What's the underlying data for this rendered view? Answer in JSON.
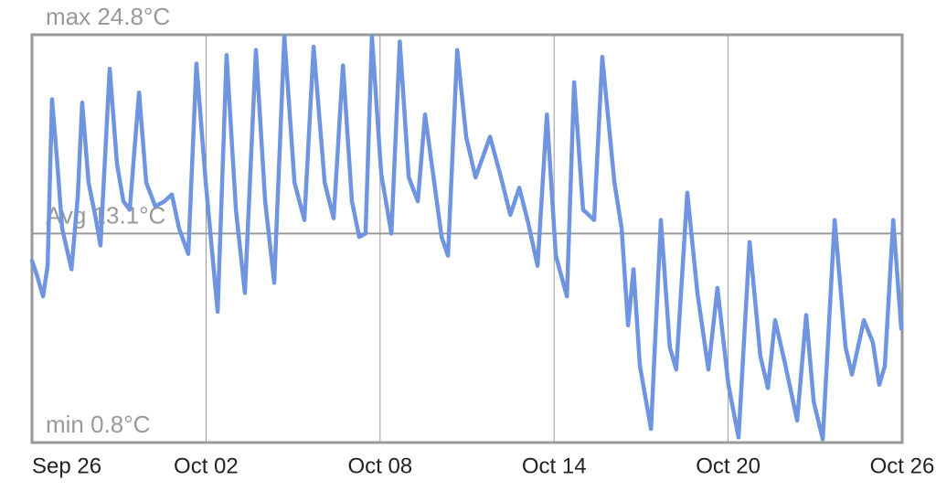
{
  "chart_data": {
    "type": "line",
    "xlim": [
      0,
      30
    ],
    "xticks": [
      {
        "value": 0,
        "label": "Sep 26"
      },
      {
        "value": 6,
        "label": "Oct 02"
      },
      {
        "value": 12,
        "label": "Oct 08"
      },
      {
        "value": 18,
        "label": "Oct 14"
      },
      {
        "value": 24,
        "label": "Oct 20"
      },
      {
        "value": 30,
        "label": "Oct 26"
      }
    ],
    "ylim": [
      0.8,
      24.8
    ],
    "reference_lines": [
      {
        "value": 24.8,
        "label": "max 24.8°C"
      },
      {
        "value": 13.1,
        "label": "Avg 13.1°C"
      },
      {
        "value": 0.8,
        "label": "min 0.8°C"
      }
    ],
    "grid": true,
    "series": [
      {
        "color": "#6f95e0",
        "x": [
          0,
          0.16,
          0.38,
          0.54,
          0.69,
          0.85,
          1.04,
          1.36,
          1.58,
          1.73,
          1.95,
          2.21,
          2.36,
          2.68,
          2.93,
          3.15,
          3.37,
          3.69,
          3.94,
          4.25,
          4.57,
          4.82,
          5.07,
          5.39,
          5.67,
          5.99,
          6.4,
          6.71,
          7.03,
          7.34,
          7.72,
          8.04,
          8.35,
          8.7,
          9.05,
          9.39,
          9.71,
          10.09,
          10.4,
          10.72,
          11.03,
          11.28,
          11.5,
          11.72,
          12.04,
          12.39,
          12.68,
          12.99,
          13.3,
          13.55,
          13.87,
          14.12,
          14.34,
          14.66,
          14.97,
          15.29,
          15.79,
          16.17,
          16.49,
          16.8,
          17.11,
          17.43,
          17.75,
          18.06,
          18.44,
          18.69,
          19.0,
          19.38,
          19.66,
          20.08,
          20.33,
          20.55,
          20.74,
          20.96,
          21.34,
          21.68,
          21.99,
          22.21,
          22.59,
          22.94,
          23.32,
          23.63,
          24.01,
          24.36,
          24.74,
          25.11,
          25.37,
          25.62,
          25.94,
          26.38,
          26.69,
          26.95,
          27.26,
          27.67,
          28.05,
          28.27,
          28.68,
          28.99,
          29.21,
          29.4,
          29.69,
          29.97
        ],
        "values": [
          11.5,
          10.7,
          9.4,
          11.2,
          21.0,
          17.7,
          13.4,
          11.0,
          15.3,
          20.8,
          16.1,
          13.9,
          12.4,
          22.8,
          17.2,
          15.0,
          14.5,
          21.4,
          16.1,
          14.7,
          15.0,
          15.4,
          13.4,
          11.9,
          23.1,
          16.1,
          8.5,
          23.6,
          14.5,
          9.6,
          23.9,
          15.0,
          10.2,
          24.7,
          16.1,
          13.9,
          24.1,
          16.1,
          14.0,
          23.0,
          15.0,
          12.9,
          13.1,
          24.7,
          16.6,
          13.1,
          24.4,
          16.4,
          15.0,
          20.1,
          16.1,
          12.9,
          11.8,
          23.9,
          18.8,
          16.4,
          18.8,
          16.4,
          14.2,
          15.8,
          13.7,
          11.2,
          20.1,
          11.8,
          9.4,
          22.0,
          14.5,
          13.9,
          23.5,
          16.1,
          13.4,
          7.7,
          11.0,
          5.3,
          1.6,
          13.9,
          6.4,
          5.1,
          15.5,
          9.6,
          5.1,
          9.9,
          4.2,
          1.1,
          12.6,
          5.9,
          4.0,
          8.0,
          5.6,
          2.1,
          8.3,
          3.2,
          1.0,
          13.9,
          6.4,
          4.8,
          8.0,
          6.7,
          4.2,
          5.3,
          13.9,
          7.5
        ]
      }
    ]
  }
}
